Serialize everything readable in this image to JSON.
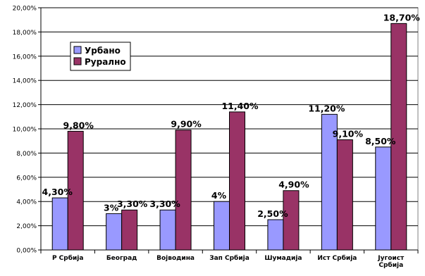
{
  "chart_data": {
    "type": "bar",
    "title": "",
    "xlabel": "",
    "ylabel": "",
    "ylim": [
      0,
      20
    ],
    "ytick_step": 2,
    "ytick_labels": [
      "0,00%",
      "2,00%",
      "4,00%",
      "6,00%",
      "8,00%",
      "10,00%",
      "12,00%",
      "14,00%",
      "16,00%",
      "18,00%",
      "20,00%"
    ],
    "grid": true,
    "legend_position": "top-left",
    "categories": [
      [
        "Р Србија"
      ],
      [
        "Београд"
      ],
      [
        "Војводина"
      ],
      [
        "Зап Србија"
      ],
      [
        "Шумадија"
      ],
      [
        "Ист Србија"
      ],
      [
        "Југоист",
        "Србија"
      ]
    ],
    "series": [
      {
        "name": "Урбано",
        "color": "#9999ff",
        "values": [
          4.3,
          3.0,
          3.3,
          4.0,
          2.5,
          11.2,
          8.5
        ],
        "labels": [
          "4,30%",
          "3%",
          "3,30%",
          "4%",
          "2,50%",
          "11,20%",
          "8,50%"
        ]
      },
      {
        "name": "Рурално",
        "color": "#993366",
        "values": [
          9.8,
          3.3,
          9.9,
          11.4,
          4.9,
          9.1,
          18.7
        ],
        "labels": [
          "9,80%",
          "3,30%",
          "9,90%",
          "11,40%",
          "4,90%",
          "9,10%",
          "18,70%"
        ]
      }
    ]
  }
}
